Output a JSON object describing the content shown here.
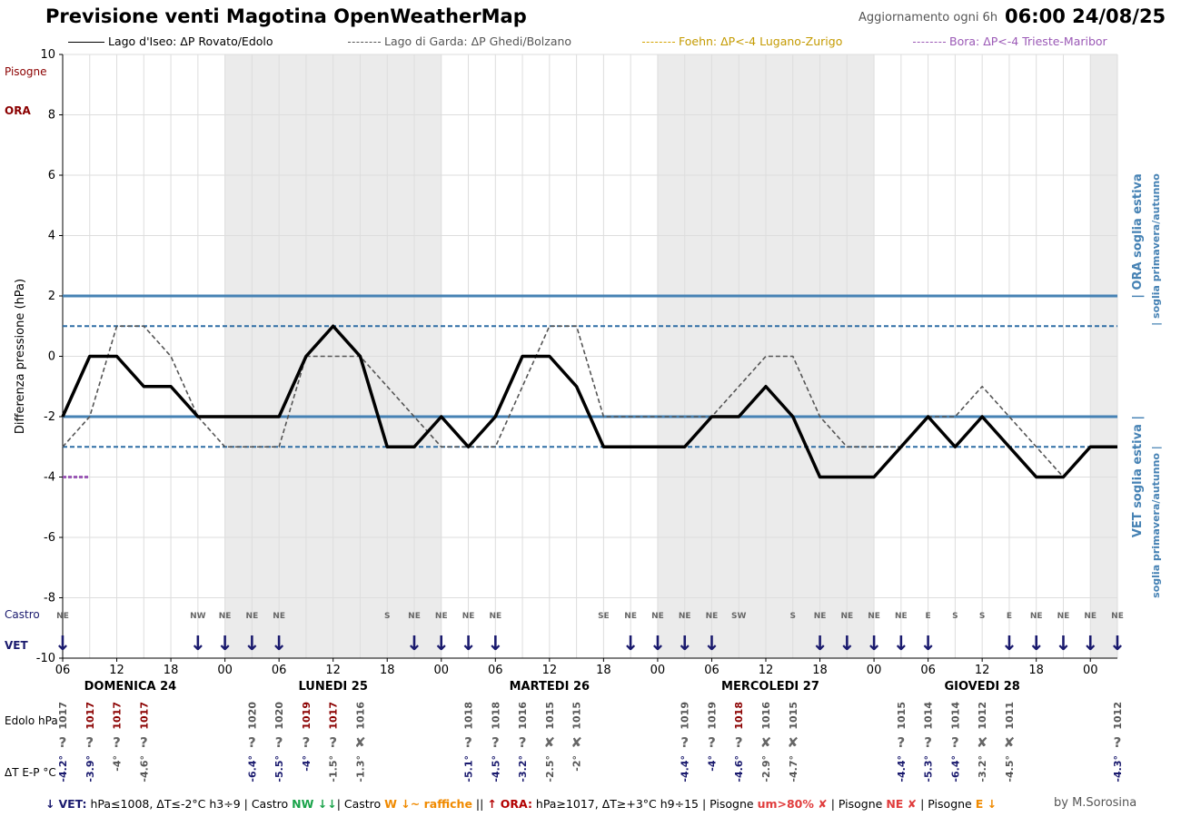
{
  "header": {
    "title": "Previsione venti Magotina OpenWeatherMap",
    "update_note": "Aggiornamento ogni 6h",
    "timestamp": "06:00 24/08/25"
  },
  "legend": [
    {
      "label": "Lago d'Iseo: ΔP Rovato/Edolo",
      "color": "#000000",
      "dash": "solid"
    },
    {
      "label": "Lago di Garda: ΔP Ghedi/Bolzano",
      "color": "#555555",
      "dash": "dashed"
    },
    {
      "label": "Foehn: ΔP<-4 Lugano-Zurigo",
      "color": "#d4a300",
      "dash": "dashed"
    },
    {
      "label": "Bora: ΔP<-4 Trieste-Maribor",
      "color": "#9b59b6",
      "dash": "dashed"
    }
  ],
  "chart_data": {
    "type": "line",
    "ylabel": "Differenza pressione (hPa)",
    "ylim": [
      -10,
      10
    ],
    "yticks": [
      10,
      8,
      6,
      4,
      2,
      0,
      -2,
      -4,
      -6,
      -8,
      -10
    ],
    "xlim": [
      0,
      117
    ],
    "xticks": [
      {
        "h": 0,
        "label": "06"
      },
      {
        "h": 6,
        "label": "12"
      },
      {
        "h": 12,
        "label": "18"
      },
      {
        "h": 18,
        "label": "00"
      },
      {
        "h": 24,
        "label": "06"
      },
      {
        "h": 30,
        "label": "12"
      },
      {
        "h": 36,
        "label": "18"
      },
      {
        "h": 42,
        "label": "00"
      },
      {
        "h": 48,
        "label": "06"
      },
      {
        "h": 54,
        "label": "12"
      },
      {
        "h": 60,
        "label": "18"
      },
      {
        "h": 66,
        "label": "00"
      },
      {
        "h": 72,
        "label": "06"
      },
      {
        "h": 78,
        "label": "12"
      },
      {
        "h": 84,
        "label": "18"
      },
      {
        "h": 90,
        "label": "00"
      },
      {
        "h": 96,
        "label": "06"
      },
      {
        "h": 102,
        "label": "12"
      },
      {
        "h": 108,
        "label": "18"
      },
      {
        "h": 114,
        "label": "00"
      }
    ],
    "days": [
      {
        "label": "DOMENICA 24",
        "h": 7.5
      },
      {
        "label": "LUNEDI 25",
        "h": 30
      },
      {
        "label": "MARTEDI 26",
        "h": 54
      },
      {
        "label": "MERCOLEDI 27",
        "h": 78.5
      },
      {
        "label": "GIOVEDI 28",
        "h": 102
      }
    ],
    "night_bands": [
      [
        18,
        42
      ],
      [
        66,
        90
      ],
      [
        114,
        117
      ]
    ],
    "grid": true,
    "thresholds": {
      "solid": [
        2,
        -2
      ],
      "dashed": [
        1,
        -3
      ],
      "color": "#4682b4",
      "ora_summer": "| ORA soglia estiva",
      "ora_spring": "| soglia primavera/autunno",
      "vet_summer": "VET soglia estiva |",
      "vet_spring": "soglia primavera/autunno |"
    },
    "x": [
      0,
      3,
      6,
      9,
      12,
      15,
      18,
      21,
      24,
      27,
      30,
      33,
      36,
      39,
      42,
      45,
      48,
      51,
      54,
      57,
      60,
      63,
      66,
      69,
      72,
      75,
      78,
      81,
      84,
      87,
      90,
      93,
      96,
      99,
      102,
      105,
      108,
      111,
      114,
      117
    ],
    "series": [
      {
        "name": "Lago d'Iseo: ΔP Rovato/Edolo",
        "color": "#000000",
        "width": 3.5,
        "dash": "",
        "values": [
          -2,
          0,
          0,
          -1,
          -1,
          -2,
          -2,
          -2,
          -2,
          0,
          1,
          0,
          -3,
          -3,
          -2,
          -3,
          -2,
          0,
          0,
          -1,
          -3,
          -3,
          -3,
          -3,
          -2,
          -2,
          -1,
          -2,
          -4,
          -4,
          -4,
          -3,
          -2,
          -3,
          -2,
          -3,
          -4,
          -4,
          -3,
          -3
        ]
      },
      {
        "name": "Lago di Garda: ΔP Ghedi/Bolzano",
        "color": "#555555",
        "width": 1.6,
        "dash": "5,3",
        "values": [
          -3,
          -2,
          1,
          1,
          0,
          -2,
          -3,
          -3,
          -3,
          0,
          0,
          0,
          -1,
          -2,
          -3,
          -3,
          -3,
          -1,
          1,
          1,
          -2,
          -2,
          -2,
          -2,
          -2,
          -1,
          0,
          0,
          -2,
          -3,
          -3,
          -3,
          -2,
          -2,
          -1,
          -2,
          -3,
          -4,
          null,
          null
        ]
      },
      {
        "name": "Bora: ΔP<-4 Trieste-Maribor",
        "color": "#9b59b6",
        "width": 3,
        "dash": "4,2",
        "values": [
          -4,
          -4,
          null,
          null,
          null,
          null,
          null,
          null,
          null,
          null,
          null,
          null,
          null,
          null,
          null,
          null,
          null,
          null,
          null,
          null,
          null,
          null,
          null,
          null,
          null,
          null,
          null,
          null,
          null,
          null,
          null,
          null,
          null,
          null,
          null,
          null,
          null,
          null,
          null,
          null
        ]
      }
    ],
    "wind": {
      "castro_label": "Castro",
      "vet_label": "VET",
      "pisogne_label": "Pisogne",
      "ora_label": "ORA",
      "dirs": [
        {
          "h": 0,
          "d": "NE",
          "arrow": true
        },
        {
          "h": 15,
          "d": "NW",
          "arrow": true
        },
        {
          "h": 18,
          "d": "NE",
          "arrow": true
        },
        {
          "h": 21,
          "d": "NE",
          "arrow": true
        },
        {
          "h": 24,
          "d": "NE",
          "arrow": true
        },
        {
          "h": 36,
          "d": "S",
          "arrow": false
        },
        {
          "h": 39,
          "d": "NE",
          "arrow": true
        },
        {
          "h": 42,
          "d": "NE",
          "arrow": true
        },
        {
          "h": 45,
          "d": "NE",
          "arrow": true
        },
        {
          "h": 48,
          "d": "NE",
          "arrow": true
        },
        {
          "h": 60,
          "d": "SE",
          "arrow": false
        },
        {
          "h": 63,
          "d": "NE",
          "arrow": true
        },
        {
          "h": 66,
          "d": "NE",
          "arrow": true
        },
        {
          "h": 69,
          "d": "NE",
          "arrow": true
        },
        {
          "h": 72,
          "d": "NE",
          "arrow": true
        },
        {
          "h": 75,
          "d": "SW",
          "arrow": false
        },
        {
          "h": 81,
          "d": "S",
          "arrow": false
        },
        {
          "h": 84,
          "d": "NE",
          "arrow": true
        },
        {
          "h": 87,
          "d": "NE",
          "arrow": true
        },
        {
          "h": 90,
          "d": "NE",
          "arrow": true
        },
        {
          "h": 93,
          "d": "NE",
          "arrow": true
        },
        {
          "h": 96,
          "d": "E",
          "arrow": true
        },
        {
          "h": 99,
          "d": "S",
          "arrow": false
        },
        {
          "h": 102,
          "d": "S",
          "arrow": false
        },
        {
          "h": 105,
          "d": "E",
          "arrow": true
        },
        {
          "h": 108,
          "d": "NE",
          "arrow": true
        },
        {
          "h": 111,
          "d": "NE",
          "arrow": true
        },
        {
          "h": 114,
          "d": "NE",
          "arrow": true
        },
        {
          "h": 117,
          "d": "NE",
          "arrow": true
        }
      ]
    },
    "table": {
      "edolo_label": "Edolo hPa",
      "dt_label": "ΔT E-P °C",
      "cols": [
        {
          "h": 0,
          "hpa": "1017",
          "hc": "#555555",
          "q": "?",
          "t": "-4.2°",
          "tc": "#1a1a6e"
        },
        {
          "h": 3,
          "hpa": "1017",
          "hc": "#8b0000",
          "q": "?",
          "t": "-3.9°",
          "tc": "#1a1a6e"
        },
        {
          "h": 6,
          "hpa": "1017",
          "hc": "#8b0000",
          "q": "?",
          "t": "-4°",
          "tc": "#555555"
        },
        {
          "h": 9,
          "hpa": "1017",
          "hc": "#8b0000",
          "q": "?",
          "t": "-4.6°",
          "tc": "#555555"
        },
        {
          "h": 21,
          "hpa": "1020",
          "hc": "#555555",
          "q": "?",
          "t": "-6.4°",
          "tc": "#1a1a6e"
        },
        {
          "h": 24,
          "hpa": "1020",
          "hc": "#555555",
          "q": "?",
          "t": "-5.5°",
          "tc": "#1a1a6e"
        },
        {
          "h": 27,
          "hpa": "1019",
          "hc": "#8b0000",
          "q": "?",
          "t": "-4°",
          "tc": "#1a1a6e"
        },
        {
          "h": 30,
          "hpa": "1017",
          "hc": "#8b0000",
          "q": "?",
          "t": "-1.5°",
          "tc": "#555555"
        },
        {
          "h": 33,
          "hpa": "1016",
          "hc": "#555555",
          "q": "✘",
          "t": "-1.3°",
          "tc": "#555555"
        },
        {
          "h": 45,
          "hpa": "1018",
          "hc": "#555555",
          "q": "?",
          "t": "-5.1°",
          "tc": "#1a1a6e"
        },
        {
          "h": 48,
          "hpa": "1018",
          "hc": "#555555",
          "q": "?",
          "t": "-4.5°",
          "tc": "#1a1a6e"
        },
        {
          "h": 51,
          "hpa": "1016",
          "hc": "#555555",
          "q": "?",
          "t": "-3.2°",
          "tc": "#1a1a6e"
        },
        {
          "h": 54,
          "hpa": "1015",
          "hc": "#555555",
          "q": "✘",
          "t": "-2.5°",
          "tc": "#555555"
        },
        {
          "h": 57,
          "hpa": "1015",
          "hc": "#555555",
          "q": "✘",
          "t": "-2°",
          "tc": "#555555"
        },
        {
          "h": 69,
          "hpa": "1019",
          "hc": "#555555",
          "q": "?",
          "t": "-4.4°",
          "tc": "#1a1a6e"
        },
        {
          "h": 72,
          "hpa": "1019",
          "hc": "#555555",
          "q": "?",
          "t": "-4°",
          "tc": "#1a1a6e"
        },
        {
          "h": 75,
          "hpa": "1018",
          "hc": "#8b0000",
          "q": "?",
          "t": "-4.6°",
          "tc": "#1a1a6e"
        },
        {
          "h": 78,
          "hpa": "1016",
          "hc": "#555555",
          "q": "✘",
          "t": "-2.9°",
          "tc": "#555555"
        },
        {
          "h": 81,
          "hpa": "1015",
          "hc": "#555555",
          "q": "✘",
          "t": "-4.7°",
          "tc": "#555555"
        },
        {
          "h": 93,
          "hpa": "1015",
          "hc": "#555555",
          "q": "?",
          "t": "-4.4°",
          "tc": "#1a1a6e"
        },
        {
          "h": 96,
          "hpa": "1014",
          "hc": "#555555",
          "q": "?",
          "t": "-5.3°",
          "tc": "#1a1a6e"
        },
        {
          "h": 99,
          "hpa": "1014",
          "hc": "#555555",
          "q": "?",
          "t": "-6.4°",
          "tc": "#1a1a6e"
        },
        {
          "h": 102,
          "hpa": "1012",
          "hc": "#555555",
          "q": "✘",
          "t": "-3.2°",
          "tc": "#555555"
        },
        {
          "h": 105,
          "hpa": "1011",
          "hc": "#555555",
          "q": "✘",
          "t": "-4.5°",
          "tc": "#555555"
        },
        {
          "h": 117,
          "hpa": "1012",
          "hc": "#555555",
          "q": "?",
          "t": "-4.3°",
          "tc": "#1a1a6e"
        }
      ]
    }
  },
  "footer": {
    "vet_arrow": "↓",
    "vet_label": "VET:",
    "vet_rule": " hPa≤1008, ΔT≤-2°C h3÷9 | Castro ",
    "castro_nw": "NW ↓↓",
    "mid1": "| Castro ",
    "castro_w": "W ↓~ raffiche",
    "mid2": " || ",
    "ora_arrow": "↑",
    "ora_label": "ORA:",
    "ora_rule": " hPa≥1017, ΔT≥+3°C h9÷15 | Pisogne ",
    "pisogne_um": "um>80% ✘",
    "mid3": " | Pisogne ",
    "pisogne_ne": "NE ✘",
    "mid4": " | Pisogne ",
    "pisogne_e": "E ↓",
    "byline": "by M.Sorosina"
  }
}
